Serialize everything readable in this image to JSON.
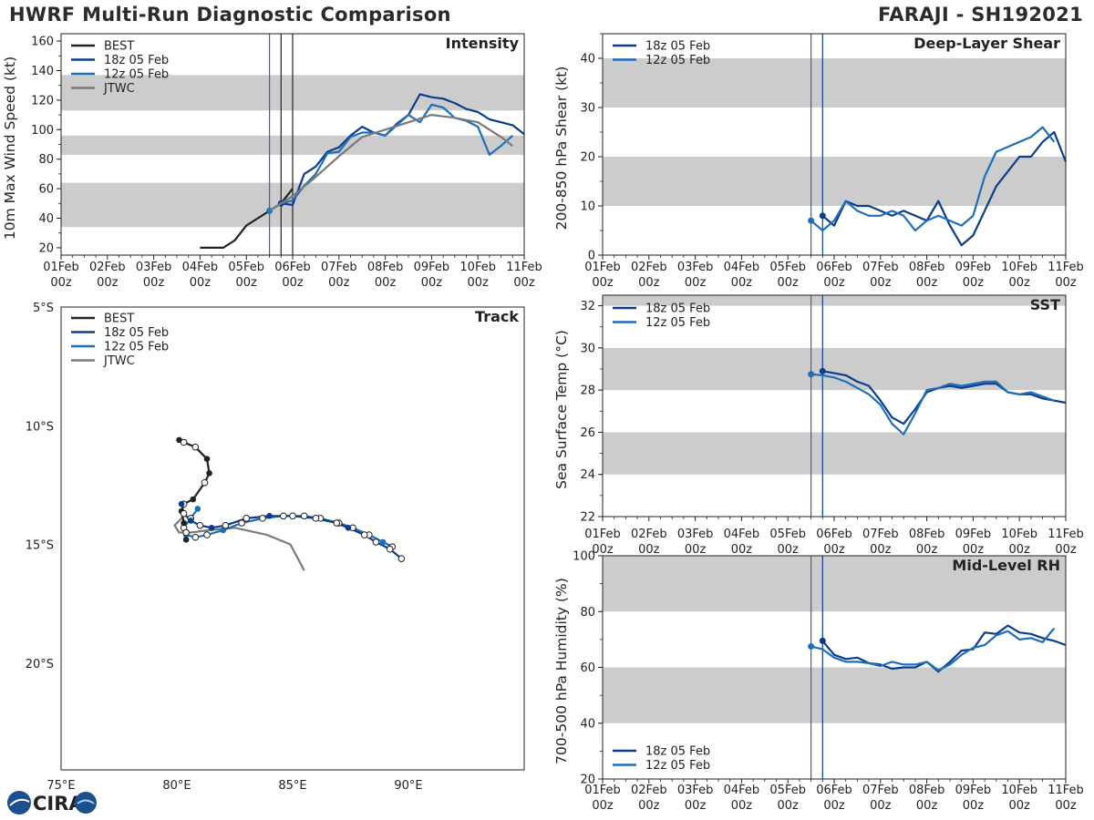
{
  "header": {
    "title": "HWRF Multi-Run Diagnostic Comparison",
    "storm": "FARAJI - SH192021"
  },
  "colors": {
    "best": "#222222",
    "run18": "#0a3d8c",
    "run12": "#1f6fb8",
    "jtwc": "#7a7a7a",
    "band": "#cccccc"
  },
  "logo": {
    "text": "CIRA",
    "icon": "cira-logo-icon"
  },
  "time_ticks": [
    "01Feb",
    "02Feb",
    "03Feb",
    "04Feb",
    "05Feb",
    "06Feb",
    "07Feb",
    "08Feb",
    "09Feb",
    "10Feb",
    "11Feb"
  ],
  "time_subtick": "00z",
  "chart_data": [
    {
      "id": "intensity",
      "type": "line",
      "title": "Intensity",
      "ylabel": "10m Max Wind Speed (kt)",
      "xlim": [
        0,
        10
      ],
      "ylim": [
        15,
        165
      ],
      "yticks": [
        20,
        40,
        60,
        80,
        100,
        120,
        140,
        160
      ],
      "bands": [
        [
          34,
          64
        ],
        [
          83,
          96
        ],
        [
          113,
          137
        ]
      ],
      "vlines": [
        {
          "x": 4.5,
          "series": "12z 05 Feb"
        },
        {
          "x": 4.75,
          "series": "BEST"
        },
        {
          "x": 5.0,
          "series": "BEST"
        }
      ],
      "legend": [
        "BEST",
        "18z 05 Feb",
        "12z 05 Feb",
        "JTWC"
      ],
      "series": [
        {
          "name": "BEST",
          "color": "best",
          "x": [
            3.0,
            3.25,
            3.5,
            3.75,
            4.0,
            4.25,
            4.5,
            4.75,
            5.0
          ],
          "y": [
            20,
            20,
            20,
            25,
            35,
            40,
            45,
            50,
            60
          ]
        },
        {
          "name": "18z 05 Feb",
          "color": "run18",
          "x": [
            4.75,
            5.0,
            5.25,
            5.5,
            5.75,
            6.0,
            6.25,
            6.5,
            6.75,
            7.0,
            7.25,
            7.5,
            7.75,
            8.0,
            8.25,
            8.5,
            8.75,
            9.0,
            9.25,
            9.5,
            9.75,
            10.0
          ],
          "y": [
            50,
            49,
            70,
            75,
            85,
            88,
            96,
            102,
            98,
            96,
            104,
            110,
            124,
            122,
            121,
            118,
            114,
            112,
            107,
            105,
            103,
            97
          ],
          "marker_x": 4.75
        },
        {
          "name": "12z 05 Feb",
          "color": "run12",
          "x": [
            4.5,
            4.75,
            5.0,
            5.25,
            5.5,
            5.75,
            6.0,
            6.25,
            6.5,
            6.75,
            7.0,
            7.25,
            7.5,
            7.75,
            8.0,
            8.25,
            8.5,
            8.75,
            9.0,
            9.25,
            9.5,
            9.75
          ],
          "y": [
            45,
            50,
            52,
            62,
            70,
            84,
            85,
            95,
            98,
            98,
            96,
            103,
            110,
            105,
            117,
            115,
            108,
            106,
            102,
            83,
            89,
            96
          ],
          "marker_x": 4.5
        },
        {
          "name": "JTWC",
          "color": "jtwc",
          "x": [
            4.5,
            5.0,
            5.5,
            6.0,
            6.5,
            7.0,
            7.5,
            8.0,
            8.5,
            9.0,
            9.5,
            9.75
          ],
          "y": [
            45,
            55,
            68,
            82,
            95,
            100,
            105,
            110,
            108,
            105,
            95,
            89
          ]
        }
      ]
    },
    {
      "id": "shear",
      "type": "line",
      "title": "Deep-Layer Shear",
      "ylabel": "200-850 hPa Shear (kt)",
      "xlim": [
        0,
        10
      ],
      "ylim": [
        0,
        45
      ],
      "yticks": [
        0,
        10,
        20,
        30,
        40
      ],
      "bands": [
        [
          10,
          20
        ],
        [
          30,
          40
        ]
      ],
      "vlines": [
        {
          "x": 4.5,
          "series": "12z 05 Feb"
        },
        {
          "x": 4.75,
          "series": "18z 05 Feb"
        }
      ],
      "legend": [
        "18z 05 Feb",
        "12z 05 Feb"
      ],
      "series": [
        {
          "name": "18z 05 Feb",
          "color": "run18",
          "x": [
            4.75,
            5.0,
            5.25,
            5.5,
            5.75,
            6.0,
            6.25,
            6.5,
            6.75,
            7.0,
            7.25,
            7.5,
            7.75,
            8.0,
            8.25,
            8.5,
            8.75,
            9.0,
            9.25,
            9.5,
            9.75,
            10.0
          ],
          "y": [
            8,
            6,
            11,
            10,
            10,
            9,
            8,
            9,
            8,
            7,
            11,
            6,
            2,
            4,
            9,
            14,
            17,
            20,
            20,
            23,
            25,
            19
          ],
          "marker_x": 4.75
        },
        {
          "name": "12z 05 Feb",
          "color": "run12",
          "x": [
            4.5,
            4.75,
            5.0,
            5.25,
            5.5,
            5.75,
            6.0,
            6.25,
            6.5,
            6.75,
            7.0,
            7.25,
            7.5,
            7.75,
            8.0,
            8.25,
            8.5,
            8.75,
            9.0,
            9.25,
            9.5,
            9.75
          ],
          "y": [
            7,
            5,
            7,
            11,
            9,
            8,
            8,
            9,
            8,
            5,
            7,
            8,
            7,
            6,
            8,
            16,
            21,
            22,
            23,
            24,
            26,
            23
          ],
          "marker_x": 4.5
        }
      ]
    },
    {
      "id": "sst",
      "type": "line",
      "title": "SST",
      "ylabel": "Sea Surface Temp (°C)",
      "xlim": [
        0,
        10
      ],
      "ylim": [
        22,
        32.5
      ],
      "yticks": [
        22,
        24,
        26,
        28,
        30,
        32
      ],
      "bands": [
        [
          24,
          26
        ],
        [
          28,
          30
        ],
        [
          32,
          32.5
        ]
      ],
      "vlines": [
        {
          "x": 4.5,
          "series": "12z 05 Feb"
        },
        {
          "x": 4.75,
          "series": "18z 05 Feb"
        }
      ],
      "legend": [
        "18z 05 Feb",
        "12z 05 Feb"
      ],
      "series": [
        {
          "name": "18z 05 Feb",
          "color": "run18",
          "x": [
            4.75,
            5.0,
            5.25,
            5.5,
            5.75,
            6.0,
            6.25,
            6.5,
            6.75,
            7.0,
            7.25,
            7.5,
            7.75,
            8.0,
            8.25,
            8.5,
            8.75,
            9.0,
            9.25,
            9.5,
            9.75,
            10.0
          ],
          "y": [
            28.9,
            28.8,
            28.7,
            28.4,
            28.2,
            27.5,
            26.7,
            26.4,
            27.1,
            27.9,
            28.1,
            28.2,
            28.1,
            28.2,
            28.3,
            28.3,
            27.9,
            27.8,
            27.8,
            27.6,
            27.5,
            27.4
          ],
          "marker_x": 4.75
        },
        {
          "name": "12z 05 Feb",
          "color": "run12",
          "x": [
            4.5,
            4.75,
            5.0,
            5.25,
            5.5,
            5.75,
            6.0,
            6.25,
            6.5,
            6.75,
            7.0,
            7.25,
            7.5,
            7.75,
            8.0,
            8.25,
            8.5,
            8.75,
            9.0,
            9.25,
            9.5,
            9.75
          ],
          "y": [
            28.75,
            28.7,
            28.6,
            28.4,
            28.1,
            27.8,
            27.3,
            26.4,
            25.9,
            26.9,
            28.0,
            28.1,
            28.3,
            28.2,
            28.3,
            28.4,
            28.4,
            27.9,
            27.8,
            27.9,
            27.7,
            27.5
          ],
          "marker_x": 4.5
        }
      ]
    },
    {
      "id": "rh",
      "type": "line",
      "title": "Mid-Level RH",
      "ylabel": "700-500 hPa Humidity (%)",
      "xlim": [
        0,
        10
      ],
      "ylim": [
        20,
        100
      ],
      "yticks": [
        20,
        40,
        60,
        80,
        100
      ],
      "bands": [
        [
          40,
          60
        ],
        [
          80,
          100
        ]
      ],
      "vlines": [
        {
          "x": 4.5,
          "series": "12z 05 Feb"
        },
        {
          "x": 4.75,
          "series": "18z 05 Feb"
        }
      ],
      "legend": [
        "18z 05 Feb",
        "12z 05 Feb"
      ],
      "series": [
        {
          "name": "18z 05 Feb",
          "color": "run18",
          "x": [
            4.75,
            5.0,
            5.25,
            5.5,
            5.75,
            6.0,
            6.25,
            6.5,
            6.75,
            7.0,
            7.25,
            7.5,
            7.75,
            8.0,
            8.25,
            8.5,
            8.75,
            9.0,
            9.25,
            9.5,
            9.75,
            10.0
          ],
          "y": [
            69.5,
            64.5,
            63,
            63.5,
            61.5,
            61,
            59.5,
            60,
            60,
            62,
            58.5,
            62,
            66,
            66.5,
            72.5,
            72,
            75,
            72.5,
            72,
            70.5,
            69.5,
            68
          ],
          "marker_x": 4.75
        },
        {
          "name": "12z 05 Feb",
          "color": "run12",
          "x": [
            4.5,
            4.75,
            5.0,
            5.25,
            5.5,
            5.75,
            6.0,
            6.25,
            6.5,
            6.75,
            7.0,
            7.25,
            7.5,
            7.75,
            8.0,
            8.25,
            8.5,
            8.75,
            9.0,
            9.25,
            9.5,
            9.75
          ],
          "y": [
            67.5,
            66.5,
            63.5,
            62,
            62,
            61.5,
            60.5,
            62,
            61,
            61,
            62,
            59,
            61,
            64.5,
            67,
            68,
            71.5,
            73,
            70,
            70.5,
            69,
            74
          ],
          "marker_x": 4.5
        }
      ]
    },
    {
      "id": "track",
      "type": "line",
      "title": "Track",
      "xlabel_ticks": [
        "75°E",
        "80°E",
        "85°E",
        "90°E"
      ],
      "ylabel_ticks": [
        "5°S",
        "10°S",
        "15°S",
        "20°S"
      ],
      "lon_ticks": [
        75,
        80,
        85,
        90
      ],
      "lat_ticks": [
        -5,
        -10,
        -15,
        -20
      ],
      "xlim": [
        75,
        95
      ],
      "ylim": [
        -24.5,
        -5
      ],
      "legend": [
        "BEST",
        "18z 05 Feb",
        "12z 05 Feb",
        "JTWC"
      ],
      "series": [
        {
          "name": "BEST",
          "color": "best",
          "lon": [
            80.1,
            80.3,
            80.8,
            81.3,
            81.4,
            81.2,
            80.7,
            80.3,
            80.2,
            80.3,
            80.4,
            80.4
          ],
          "lat": [
            -10.6,
            -10.7,
            -10.9,
            -11.4,
            -12.0,
            -12.4,
            -13.1,
            -13.3,
            -13.6,
            -14.1,
            -14.5,
            -14.8
          ],
          "filled": [
            1,
            0,
            0,
            1,
            1,
            0,
            1,
            0,
            1,
            1,
            0,
            1
          ],
          "marker_every": 1
        },
        {
          "name": "18z 05 Feb",
          "color": "run18",
          "lon": [
            80.2,
            80.3,
            80.6,
            81.0,
            81.5,
            82.1,
            83.0,
            84.0,
            85.0,
            86.0,
            86.9,
            87.4,
            88.1,
            88.6,
            89.2,
            89.7
          ],
          "lat": [
            -13.3,
            -13.7,
            -14.0,
            -14.2,
            -14.3,
            -14.2,
            -13.9,
            -13.8,
            -13.8,
            -13.9,
            -14.1,
            -14.3,
            -14.6,
            -14.9,
            -15.2,
            -15.6
          ],
          "filled": [
            1,
            0,
            1,
            0,
            1,
            0,
            0,
            1,
            0,
            0,
            0,
            1,
            0,
            0,
            0,
            0
          ],
          "marker_every": 1
        },
        {
          "name": "12z 05 Feb",
          "color": "run12",
          "lon": [
            80.9,
            80.6,
            80.3,
            80.4,
            80.8,
            81.3,
            82.0,
            82.8,
            83.7,
            84.6,
            85.5,
            86.2,
            87.0,
            87.6,
            88.3,
            88.9,
            89.3
          ],
          "lat": [
            -13.5,
            -13.9,
            -14.3,
            -14.6,
            -14.7,
            -14.6,
            -14.4,
            -14.1,
            -13.9,
            -13.8,
            -13.8,
            -13.9,
            -14.1,
            -14.3,
            -14.6,
            -14.9,
            -15.1
          ],
          "filled": [
            1,
            0,
            0,
            1,
            0,
            0,
            1,
            0,
            0,
            0,
            0,
            0,
            0,
            0,
            0,
            1,
            0
          ],
          "marker_every": 1
        },
        {
          "name": "JTWC",
          "color": "jtwc",
          "lon": [
            80.4,
            80.2,
            79.9,
            80.1,
            80.6,
            81.4,
            82.5,
            83.9,
            84.9,
            85.5
          ],
          "lat": [
            -13.6,
            -13.9,
            -14.2,
            -14.5,
            -14.5,
            -14.4,
            -14.3,
            -14.6,
            -15.0,
            -16.1
          ],
          "filled": [
            0,
            0,
            0,
            0,
            0,
            0,
            0,
            0,
            0,
            0
          ],
          "marker_every": 0
        }
      ]
    }
  ]
}
